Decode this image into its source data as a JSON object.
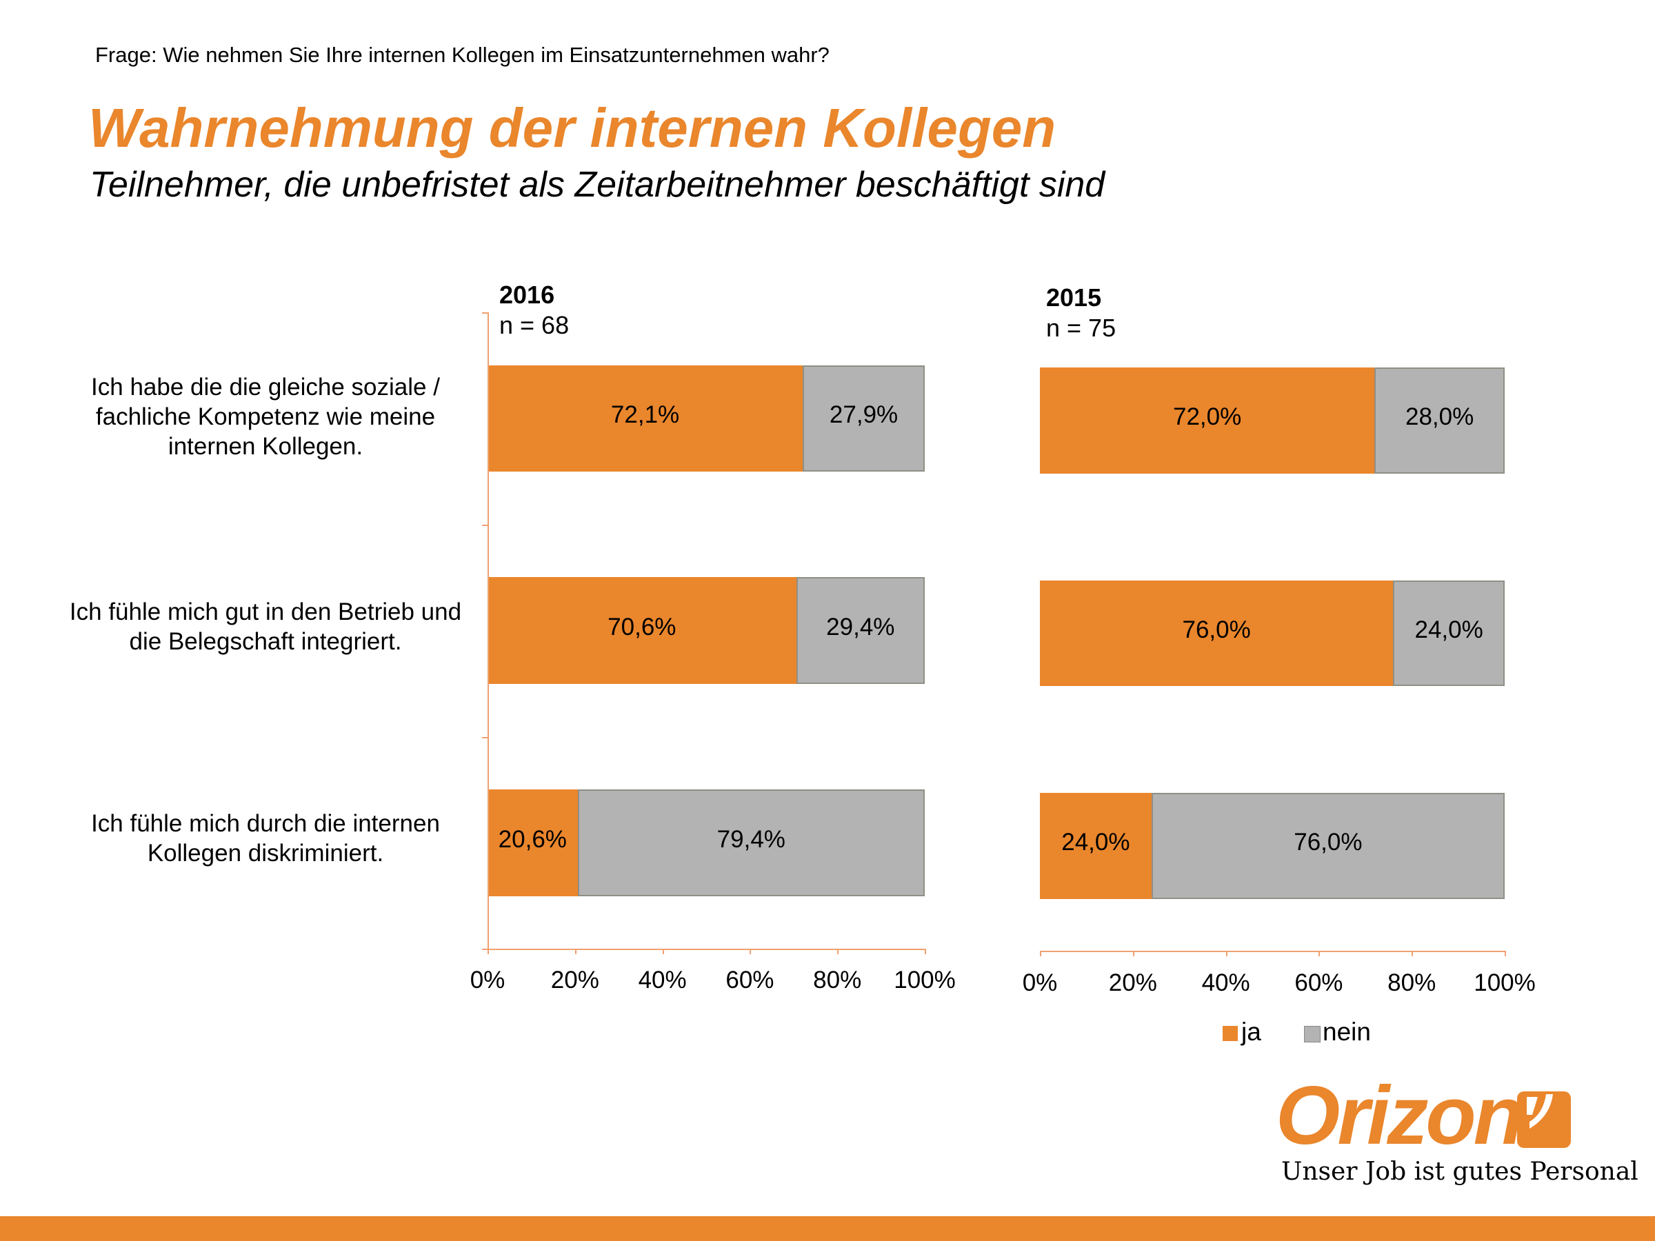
{
  "question": "Frage: Wie nehmen Sie Ihre internen Kollegen im Einsatzunternehmen wahr?",
  "title": "Wahrnehmung der internen Kollegen",
  "subtitle": "Teilnehmer, die unbefristet als Zeitarbeitnehmer beschäftigt sind",
  "colors": {
    "ja": "#EA862C",
    "nein": "#B3B3B3"
  },
  "chart_data": [
    {
      "type": "bar",
      "stacked": true,
      "orientation": "horizontal",
      "title": "2016",
      "sample": "n = 68",
      "categories": [
        "Ich habe die die gleiche soziale / fachliche Kompetenz wie meine internen Kollegen.",
        "Ich fühle mich gut in den Betrieb und die Belegschaft integriert.",
        "Ich fühle mich durch die internen Kollegen diskriminiert."
      ],
      "series": [
        {
          "name": "ja",
          "values": [
            72.1,
            70.6,
            20.6
          ],
          "labels": [
            "72,1%",
            "70,6%",
            "20,6%"
          ]
        },
        {
          "name": "nein",
          "values": [
            27.9,
            29.4,
            79.4
          ],
          "labels": [
            "27,9%",
            "29,4%",
            "79,4%"
          ]
        }
      ],
      "xlim": [
        0,
        100
      ],
      "xticks": [
        "0%",
        "20%",
        "40%",
        "60%",
        "80%",
        "100%"
      ]
    },
    {
      "type": "bar",
      "stacked": true,
      "orientation": "horizontal",
      "title": "2015",
      "sample": "n = 75",
      "series": [
        {
          "name": "ja",
          "values": [
            72.0,
            76.0,
            24.0
          ],
          "labels": [
            "72,0%",
            "76,0%",
            "24,0%"
          ]
        },
        {
          "name": "nein",
          "values": [
            28.0,
            24.0,
            76.0
          ],
          "labels": [
            "28,0%",
            "24,0%",
            "76,0%"
          ]
        }
      ],
      "xlim": [
        0,
        100
      ],
      "xticks": [
        "0%",
        "20%",
        "40%",
        "60%",
        "80%",
        "100%"
      ]
    }
  ],
  "category_lines": [
    [
      "Ich habe die die gleiche soziale /",
      "fachliche Kompetenz wie meine",
      "internen Kollegen."
    ],
    [
      "Ich fühle mich gut in den Betrieb und",
      "die Belegschaft integriert."
    ],
    [
      "Ich fühle mich durch die internen",
      "Kollegen diskriminiert."
    ]
  ],
  "legend": {
    "ja": "ja",
    "nein": "nein",
    "placement": "bottom-right"
  },
  "logo": {
    "word": "Orizon",
    "tagline": "Unser Job ist gutes Personal"
  }
}
